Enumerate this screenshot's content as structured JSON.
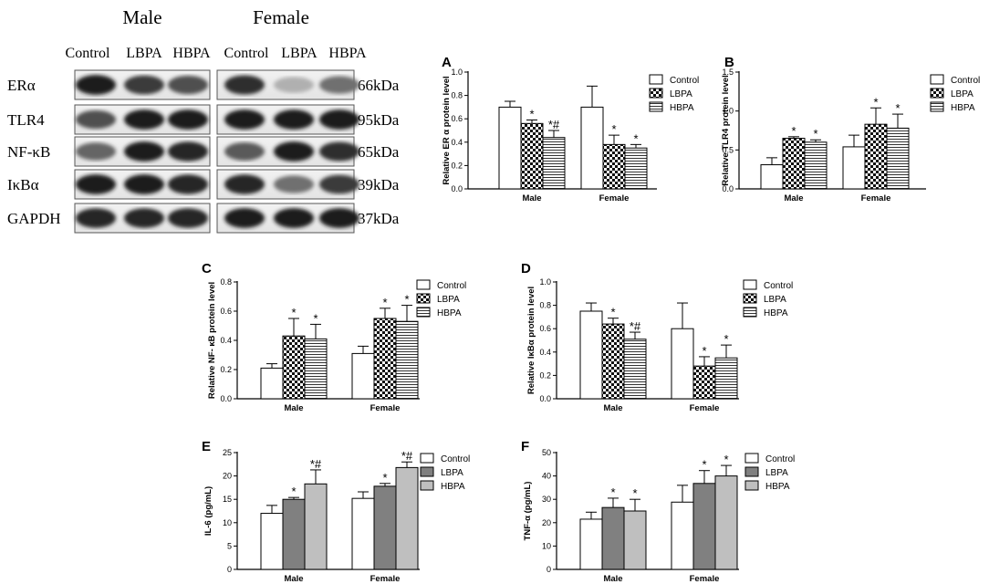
{
  "western_blot": {
    "group_labels": [
      "Male",
      "Female"
    ],
    "lane_labels": [
      "Control",
      "LBPA",
      "HBPA",
      "Control",
      "LBPA",
      "HBPA"
    ],
    "rows": [
      {
        "protein": "ERα",
        "size": "66kDa"
      },
      {
        "protein": "TLR4",
        "size": "95kDa"
      },
      {
        "protein": "NF-κB",
        "size": "65kDa"
      },
      {
        "protein": "IκBα",
        "size": "39kDa"
      },
      {
        "protein": "GAPDH",
        "size": "37kDa"
      }
    ]
  },
  "chart_data": [
    {
      "panel": "A",
      "type": "bar",
      "categories": [
        "Male",
        "Female"
      ],
      "ylabel": "Relative ER α protein level",
      "ylim": [
        0,
        1.0
      ],
      "yticks": [
        "0.0",
        "0.2",
        "0.4",
        "0.6",
        "0.8",
        "1.0"
      ],
      "series": [
        {
          "name": "Control",
          "values": [
            0.7,
            0.7
          ],
          "errors": [
            0.05,
            0.18
          ],
          "annotations": [
            "",
            ""
          ]
        },
        {
          "name": "LBPA",
          "values": [
            0.56,
            0.38
          ],
          "errors": [
            0.03,
            0.08
          ],
          "annotations": [
            "*",
            "*"
          ]
        },
        {
          "name": "HBPA",
          "values": [
            0.44,
            0.35
          ],
          "errors": [
            0.06,
            0.03
          ],
          "annotations": [
            "*#",
            "*"
          ]
        }
      ]
    },
    {
      "panel": "B",
      "type": "bar",
      "categories": [
        "Male",
        "Female"
      ],
      "ylabel": "Relative TLR4 protein level",
      "ylim": [
        0,
        1.5
      ],
      "yticks": [
        "0.0",
        "0.5",
        "1.0",
        "1.5"
      ],
      "series": [
        {
          "name": "Control",
          "values": [
            0.31,
            0.54
          ],
          "errors": [
            0.09,
            0.15
          ],
          "annotations": [
            "",
            ""
          ]
        },
        {
          "name": "LBPA",
          "values": [
            0.65,
            0.83
          ],
          "errors": [
            0.02,
            0.21
          ],
          "annotations": [
            "*",
            "*"
          ]
        },
        {
          "name": "HBPA",
          "values": [
            0.6,
            0.78
          ],
          "errors": [
            0.03,
            0.18
          ],
          "annotations": [
            "*",
            "*"
          ]
        }
      ]
    },
    {
      "panel": "C",
      "type": "bar",
      "categories": [
        "Male",
        "Female"
      ],
      "ylabel": "Relative NF- κB protein level",
      "ylim": [
        0,
        0.8
      ],
      "yticks": [
        "0.0",
        "0.2",
        "0.4",
        "0.6",
        "0.8"
      ],
      "series": [
        {
          "name": "Control",
          "values": [
            0.21,
            0.31
          ],
          "errors": [
            0.03,
            0.05
          ],
          "annotations": [
            "",
            ""
          ]
        },
        {
          "name": "LBPA",
          "values": [
            0.43,
            0.55
          ],
          "errors": [
            0.12,
            0.07
          ],
          "annotations": [
            "*",
            "*"
          ]
        },
        {
          "name": "HBPA",
          "values": [
            0.41,
            0.53
          ],
          "errors": [
            0.1,
            0.11
          ],
          "annotations": [
            "*",
            "*"
          ]
        }
      ]
    },
    {
      "panel": "D",
      "type": "bar",
      "categories": [
        "Male",
        "Female"
      ],
      "ylabel": "Relative IκBα protein level",
      "ylim": [
        0,
        1.0
      ],
      "yticks": [
        "0.0",
        "0.2",
        "0.4",
        "0.6",
        "0.8",
        "1.0"
      ],
      "series": [
        {
          "name": "Control",
          "values": [
            0.75,
            0.6
          ],
          "errors": [
            0.07,
            0.22
          ],
          "annotations": [
            "",
            ""
          ]
        },
        {
          "name": "LBPA",
          "values": [
            0.64,
            0.28
          ],
          "errors": [
            0.05,
            0.08
          ],
          "annotations": [
            "*",
            "*"
          ]
        },
        {
          "name": "HBPA",
          "values": [
            0.51,
            0.35
          ],
          "errors": [
            0.06,
            0.11
          ],
          "annotations": [
            "*#",
            "*"
          ]
        }
      ]
    },
    {
      "panel": "E",
      "type": "bar",
      "categories": [
        "Male",
        "Female"
      ],
      "ylabel": "IL-6 (pg/mL)",
      "ylim": [
        0,
        25
      ],
      "yticks": [
        "0",
        "5",
        "10",
        "15",
        "20",
        "25"
      ],
      "series": [
        {
          "name": "Control",
          "values": [
            12.0,
            15.2
          ],
          "errors": [
            1.7,
            1.4
          ],
          "annotations": [
            "",
            ""
          ]
        },
        {
          "name": "LBPA",
          "values": [
            15.0,
            17.8
          ],
          "errors": [
            0.4,
            0.6
          ],
          "annotations": [
            "*",
            "*"
          ]
        },
        {
          "name": "HBPA",
          "values": [
            18.3,
            21.8
          ],
          "errors": [
            3.0,
            1.2
          ],
          "annotations": [
            "*#",
            "*#"
          ]
        }
      ]
    },
    {
      "panel": "F",
      "type": "bar",
      "categories": [
        "Male",
        "Female"
      ],
      "ylabel": "TNF-α (pg/mL)",
      "ylim": [
        0,
        50
      ],
      "yticks": [
        "0",
        "10",
        "20",
        "30",
        "40",
        "50"
      ],
      "series": [
        {
          "name": "Control",
          "values": [
            21.5,
            28.8
          ],
          "errors": [
            3.0,
            7.2
          ],
          "annotations": [
            "",
            ""
          ]
        },
        {
          "name": "LBPA",
          "values": [
            26.5,
            36.8
          ],
          "errors": [
            4.0,
            5.5
          ],
          "annotations": [
            "*",
            "*"
          ]
        },
        {
          "name": "HBPA",
          "values": [
            25.0,
            40.0
          ],
          "errors": [
            5.0,
            4.5
          ],
          "annotations": [
            "*",
            "*"
          ]
        }
      ]
    }
  ]
}
